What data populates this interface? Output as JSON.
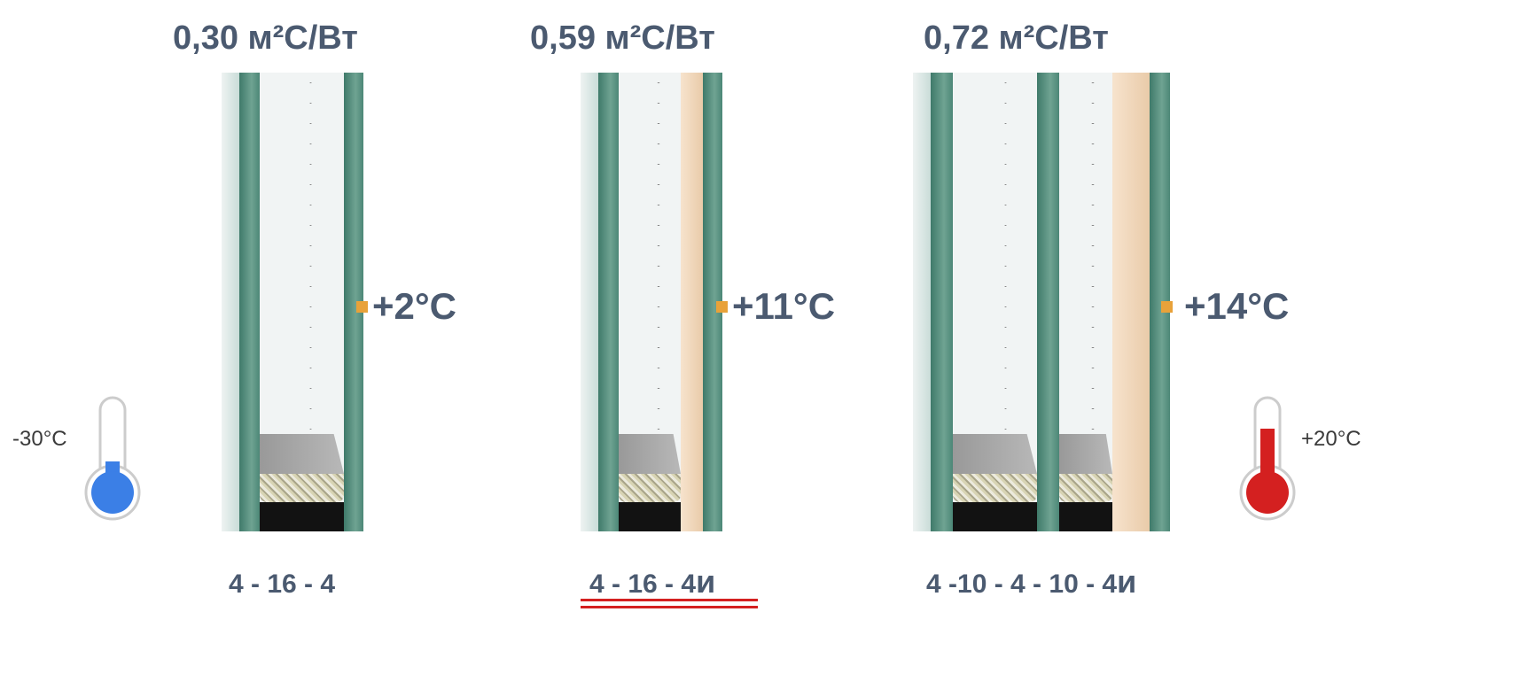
{
  "units": [
    {
      "r_value": "0,30 м²С/Вт",
      "inner_temp": "+2°C",
      "formula": "4 - 16 - 4",
      "formula_suffix": ""
    },
    {
      "r_value": "0,59 м²С/Вт",
      "inner_temp": "+11°C",
      "formula": "4 - 16 - 4",
      "formula_suffix": "и",
      "highlighted": true
    },
    {
      "r_value": "0,72 м²С/Вт",
      "inner_temp": "+14°C",
      "formula": "4 -10 - 4 - 10 - 4",
      "formula_suffix": "и"
    }
  ],
  "outside": {
    "label": "-30°C",
    "icon": "thermometer-cold-icon",
    "color": "#3b7fe6"
  },
  "inside": {
    "label": "+20°C",
    "icon": "thermometer-hot-icon",
    "color": "#d42020"
  },
  "colors": {
    "text": "#4b5a70",
    "marker": "#e8a23a",
    "underline": "#d42020"
  }
}
